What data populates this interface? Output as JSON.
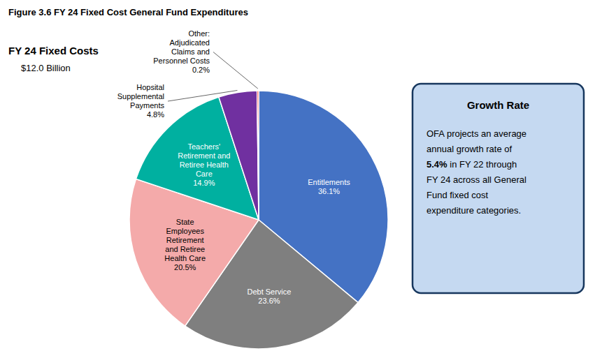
{
  "chart_data": {
    "type": "pie",
    "title": "Figure 3.6 FY 24 Fixed Cost General Fund Expenditures",
    "subtitle": "FY 24 Fixed Costs",
    "annotations": [
      "$12.0 Billion",
      "Growth Rate",
      "OFA projects an average\nannual growth rate of\n",
      "5.4%",
      " in FY 22 through\nFY 24 across all General\nFund fixed cost\nexpenditure categories."
    ],
    "categories": [
      "Entitlements",
      "Debt Service",
      "State\nEmployees\nRetirement\nand Retiree\nHealth Care",
      "Teachers'\nRetirement and\nRetiree Health\nCare",
      "Hopsital\nSupplemental\nPayments",
      "Other:\nAdjudicated\nClaims and\nPersonnel Costs"
    ],
    "values": [
      36.1,
      23.6,
      20.5,
      14.9,
      4.8,
      0.2
    ],
    "value_labels": [
      "36.1%",
      "23.6%",
      "20.5%",
      "14.9%",
      "4.8%",
      "0.2%"
    ],
    "colors": [
      "#4472C4",
      "#7F7F7F",
      "#F4AAAA",
      "#00B0A0",
      "#7030A0",
      "#FF0000"
    ],
    "data_labels": true
  }
}
